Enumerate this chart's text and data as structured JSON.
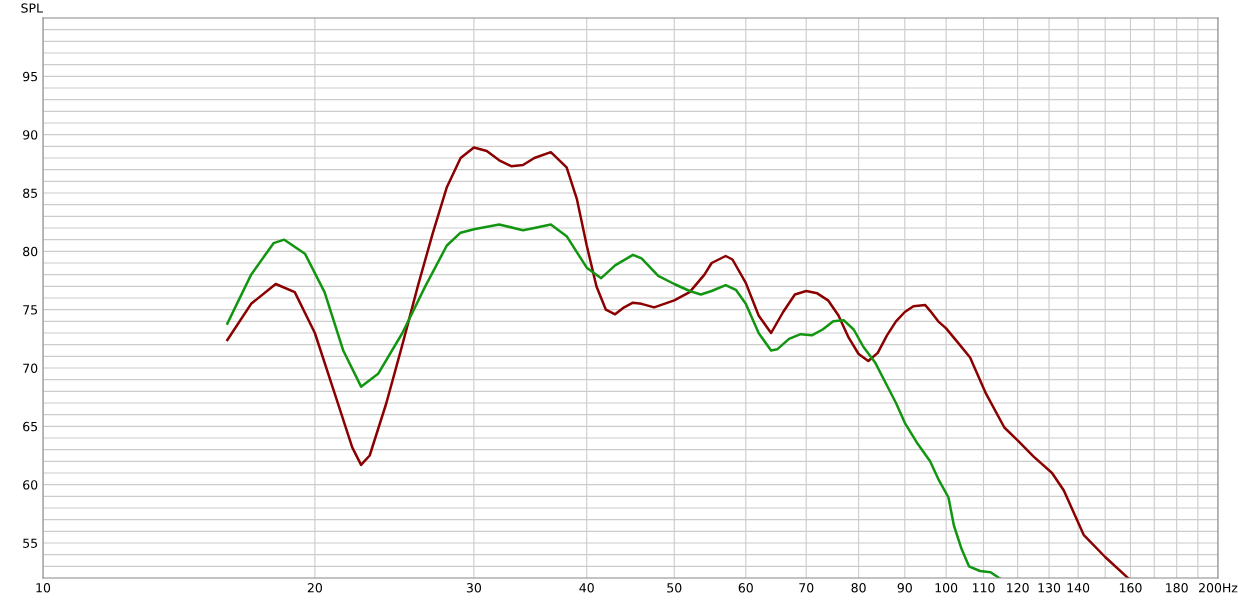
{
  "chart_data": {
    "type": "line",
    "ylabel": "SPL",
    "log": "x",
    "grid": true,
    "marker": "none",
    "line_style": "solid",
    "xlim": [
      10,
      200
    ],
    "ylim": [
      52,
      100
    ],
    "xticks": [
      10,
      20,
      30,
      40,
      50,
      60,
      70,
      80,
      90,
      100,
      110,
      120,
      130,
      140,
      {
        "value": 150,
        "label": null
      },
      160,
      {
        "value": 170,
        "label": null
      },
      180,
      {
        "value": 190,
        "label": null
      },
      {
        "value": 200,
        "label": "200Hz"
      }
    ],
    "yticks": [
      {
        "value": 53,
        "label": null
      },
      {
        "value": 54,
        "label": null
      },
      55,
      {
        "value": 56,
        "label": null
      },
      {
        "value": 57,
        "label": null
      },
      {
        "value": 58,
        "label": null
      },
      {
        "value": 59,
        "label": null
      },
      60,
      {
        "value": 61,
        "label": null
      },
      {
        "value": 62,
        "label": null
      },
      {
        "value": 63,
        "label": null
      },
      {
        "value": 64,
        "label": null
      },
      65,
      {
        "value": 66,
        "label": null
      },
      {
        "value": 67,
        "label": null
      },
      {
        "value": 68,
        "label": null
      },
      {
        "value": 69,
        "label": null
      },
      70,
      {
        "value": 71,
        "label": null
      },
      {
        "value": 72,
        "label": null
      },
      {
        "value": 73,
        "label": null
      },
      {
        "value": 74,
        "label": null
      },
      75,
      {
        "value": 76,
        "label": null
      },
      {
        "value": 77,
        "label": null
      },
      {
        "value": 78,
        "label": null
      },
      {
        "value": 79,
        "label": null
      },
      80,
      {
        "value": 81,
        "label": null
      },
      {
        "value": 82,
        "label": null
      },
      {
        "value": 83,
        "label": null
      },
      {
        "value": 84,
        "label": null
      },
      85,
      {
        "value": 86,
        "label": null
      },
      {
        "value": 87,
        "label": null
      },
      {
        "value": 88,
        "label": null
      },
      {
        "value": 89,
        "label": null
      },
      90,
      {
        "value": 91,
        "label": null
      },
      {
        "value": 92,
        "label": null
      },
      {
        "value": 93,
        "label": null
      },
      {
        "value": 94,
        "label": null
      },
      95,
      {
        "value": 96,
        "label": null
      },
      {
        "value": 97,
        "label": null
      },
      {
        "value": 98,
        "label": null
      },
      {
        "value": 99,
        "label": null
      }
    ],
    "series": [
      {
        "color": "#8b0000",
        "x": [
          16.0,
          17.0,
          18.1,
          19.0,
          20,
          21,
          22,
          22.5,
          23,
          24,
          25,
          26,
          27,
          28,
          29,
          30,
          31,
          32,
          33,
          34,
          35,
          36.5,
          38,
          39,
          40,
          41,
          42,
          43,
          44,
          45,
          46,
          47.5,
          50,
          52,
          54,
          55,
          57,
          58,
          60,
          62,
          64,
          66,
          68,
          70,
          72,
          74,
          76,
          78,
          80,
          82,
          84,
          86,
          88,
          90,
          92,
          94.8,
          96,
          98,
          100,
          103,
          106.3,
          110.7,
          116,
          120,
          125,
          131,
          135,
          142,
          150,
          159
        ],
        "values": [
          72.4,
          75.5,
          77.2,
          76.5,
          73,
          68,
          63.2,
          61.7,
          62.5,
          67,
          72,
          77,
          81.5,
          85.5,
          88,
          88.9,
          88.6,
          87.8,
          87.3,
          87.4,
          88,
          88.5,
          87.2,
          84.5,
          80.5,
          77,
          75,
          74.6,
          75.2,
          75.6,
          75.5,
          75.2,
          75.8,
          76.5,
          78,
          79,
          79.6,
          79.3,
          77.3,
          74.5,
          73,
          74.8,
          76.3,
          76.6,
          76.4,
          75.8,
          74.5,
          72.6,
          71.2,
          70.6,
          71.3,
          72.8,
          74,
          74.8,
          75.3,
          75.4,
          74.9,
          74.0,
          73.4,
          72.2,
          70.9,
          67.8,
          64.9,
          63.8,
          62.4,
          61,
          59.5,
          55.7,
          53.8,
          52
        ]
      },
      {
        "color": "#129612",
        "x": [
          16,
          17,
          18,
          18.5,
          19.5,
          20.5,
          21.5,
          22.5,
          23.5,
          25,
          26.5,
          28,
          29,
          30,
          32,
          34,
          35,
          36.5,
          38,
          40,
          41.5,
          43,
          45,
          46,
          48,
          50,
          52,
          53.5,
          55,
          57,
          58.5,
          60,
          62,
          64,
          65,
          67,
          69,
          71,
          73,
          75,
          77,
          79,
          81,
          83.4,
          86,
          88,
          90,
          93,
          96,
          98,
          100.6,
          102,
          104,
          106,
          109,
          112,
          114.5
        ],
        "values": [
          73.8,
          78,
          80.7,
          81,
          79.8,
          76.5,
          71.5,
          68.4,
          69.5,
          73,
          77,
          80.5,
          81.6,
          81.9,
          82.3,
          81.8,
          82,
          82.3,
          81.3,
          78.6,
          77.7,
          78.8,
          79.7,
          79.4,
          77.9,
          77.2,
          76.6,
          76.3,
          76.6,
          77.1,
          76.7,
          75.5,
          73,
          71.5,
          71.6,
          72.5,
          72.9,
          72.8,
          73.3,
          74,
          74.1,
          73.3,
          71.8,
          70.5,
          68.5,
          67,
          65.3,
          63.5,
          62,
          60.5,
          58.9,
          56.5,
          54.5,
          53,
          52.6,
          52.5,
          52
        ]
      }
    ]
  }
}
